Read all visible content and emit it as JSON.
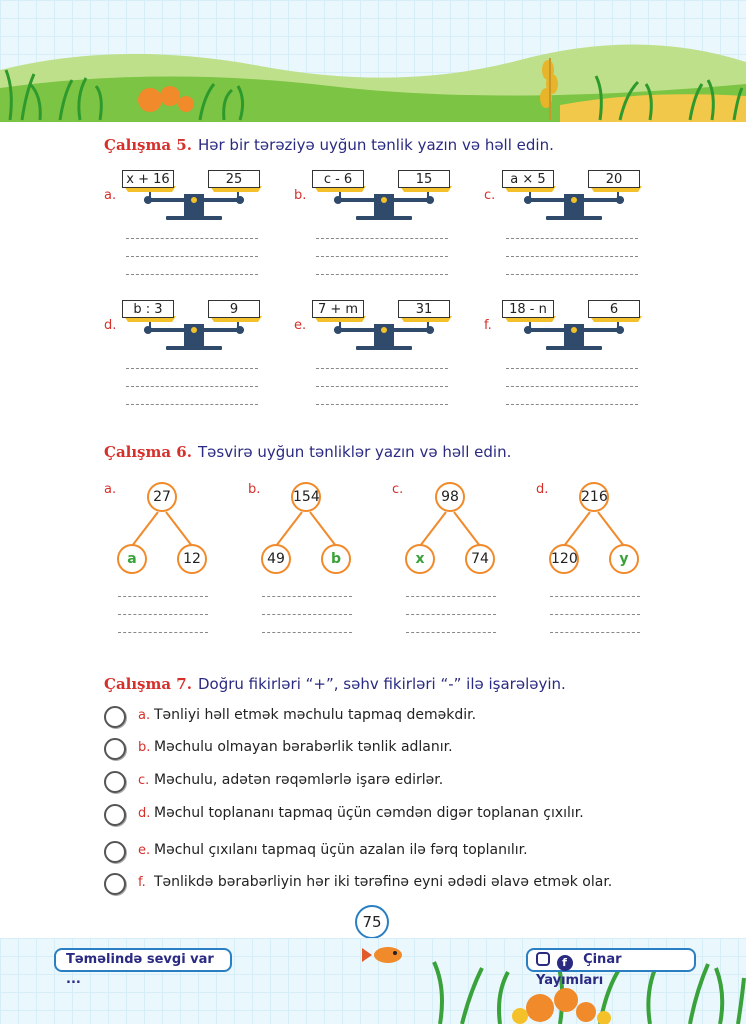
{
  "exercise5": {
    "number": "Çalışma 5.",
    "instruction": "Hər bir tərəziyə uyğun tənlik yazın və həll edin.",
    "items": [
      {
        "letter": "a.",
        "left": "x + 16",
        "right": "25"
      },
      {
        "letter": "b.",
        "left": "c - 6",
        "right": "15"
      },
      {
        "letter": "c.",
        "left": "a × 5",
        "right": "20"
      },
      {
        "letter": "d.",
        "left": "b : 3",
        "right": "9"
      },
      {
        "letter": "e.",
        "left": "7 + m",
        "right": "31"
      },
      {
        "letter": "f.",
        "left": "18 - n",
        "right": "6"
      }
    ]
  },
  "exercise6": {
    "number": "Çalışma 6.",
    "instruction": "Təsvirə uyğun tənliklər yazın və həll edin.",
    "items": [
      {
        "letter": "a.",
        "top": "27",
        "left": "a",
        "right": "12"
      },
      {
        "letter": "b.",
        "top": "154",
        "left": "49",
        "right": "b"
      },
      {
        "letter": "c.",
        "top": "98",
        "left": "x",
        "right": "74"
      },
      {
        "letter": "d.",
        "top": "216",
        "left": "120",
        "right": "y"
      }
    ]
  },
  "exercise7": {
    "number": "Çalışma 7.",
    "instruction": "Doğru fikirləri “+”, səhv fikirləri “-” ilə işarələyin.",
    "statements": [
      {
        "letter": "a.",
        "text": "Tənliyi həll etmək məchulu tapmaq deməkdir."
      },
      {
        "letter": "b.",
        "text": "Məchulu olmayan bərabərlik tənlik adlanır."
      },
      {
        "letter": "c.",
        "text": "Məchulu, adətən rəqəmlərlə işarə edirlər."
      },
      {
        "letter": "d.",
        "text": "Məchul toplananı tapmaq üçün cəmdən digər toplanan çıxılır."
      },
      {
        "letter": "e.",
        "text": "Məchul çıxılanı tapmaq üçün azalan ilə fərq toplanılır."
      },
      {
        "letter": "f.",
        "text": "Tənlikdə bərabərliyin hər iki tərəfinə eyni ədədi əlavə etmək olar."
      }
    ]
  },
  "page_number": "75",
  "footer": {
    "slogan": "Təməlində sevgi var ...",
    "publisher": "Çinar Yayımları",
    "icons": [
      "instagram-icon",
      "facebook-icon"
    ]
  },
  "colors": {
    "accent_red": "#d6302b",
    "title_blue": "#2a2a82",
    "orange": "#f08a2a",
    "green": "#3aa23a",
    "scale_navy": "#2f4a6a",
    "pan_yellow": "#f5c12b"
  }
}
